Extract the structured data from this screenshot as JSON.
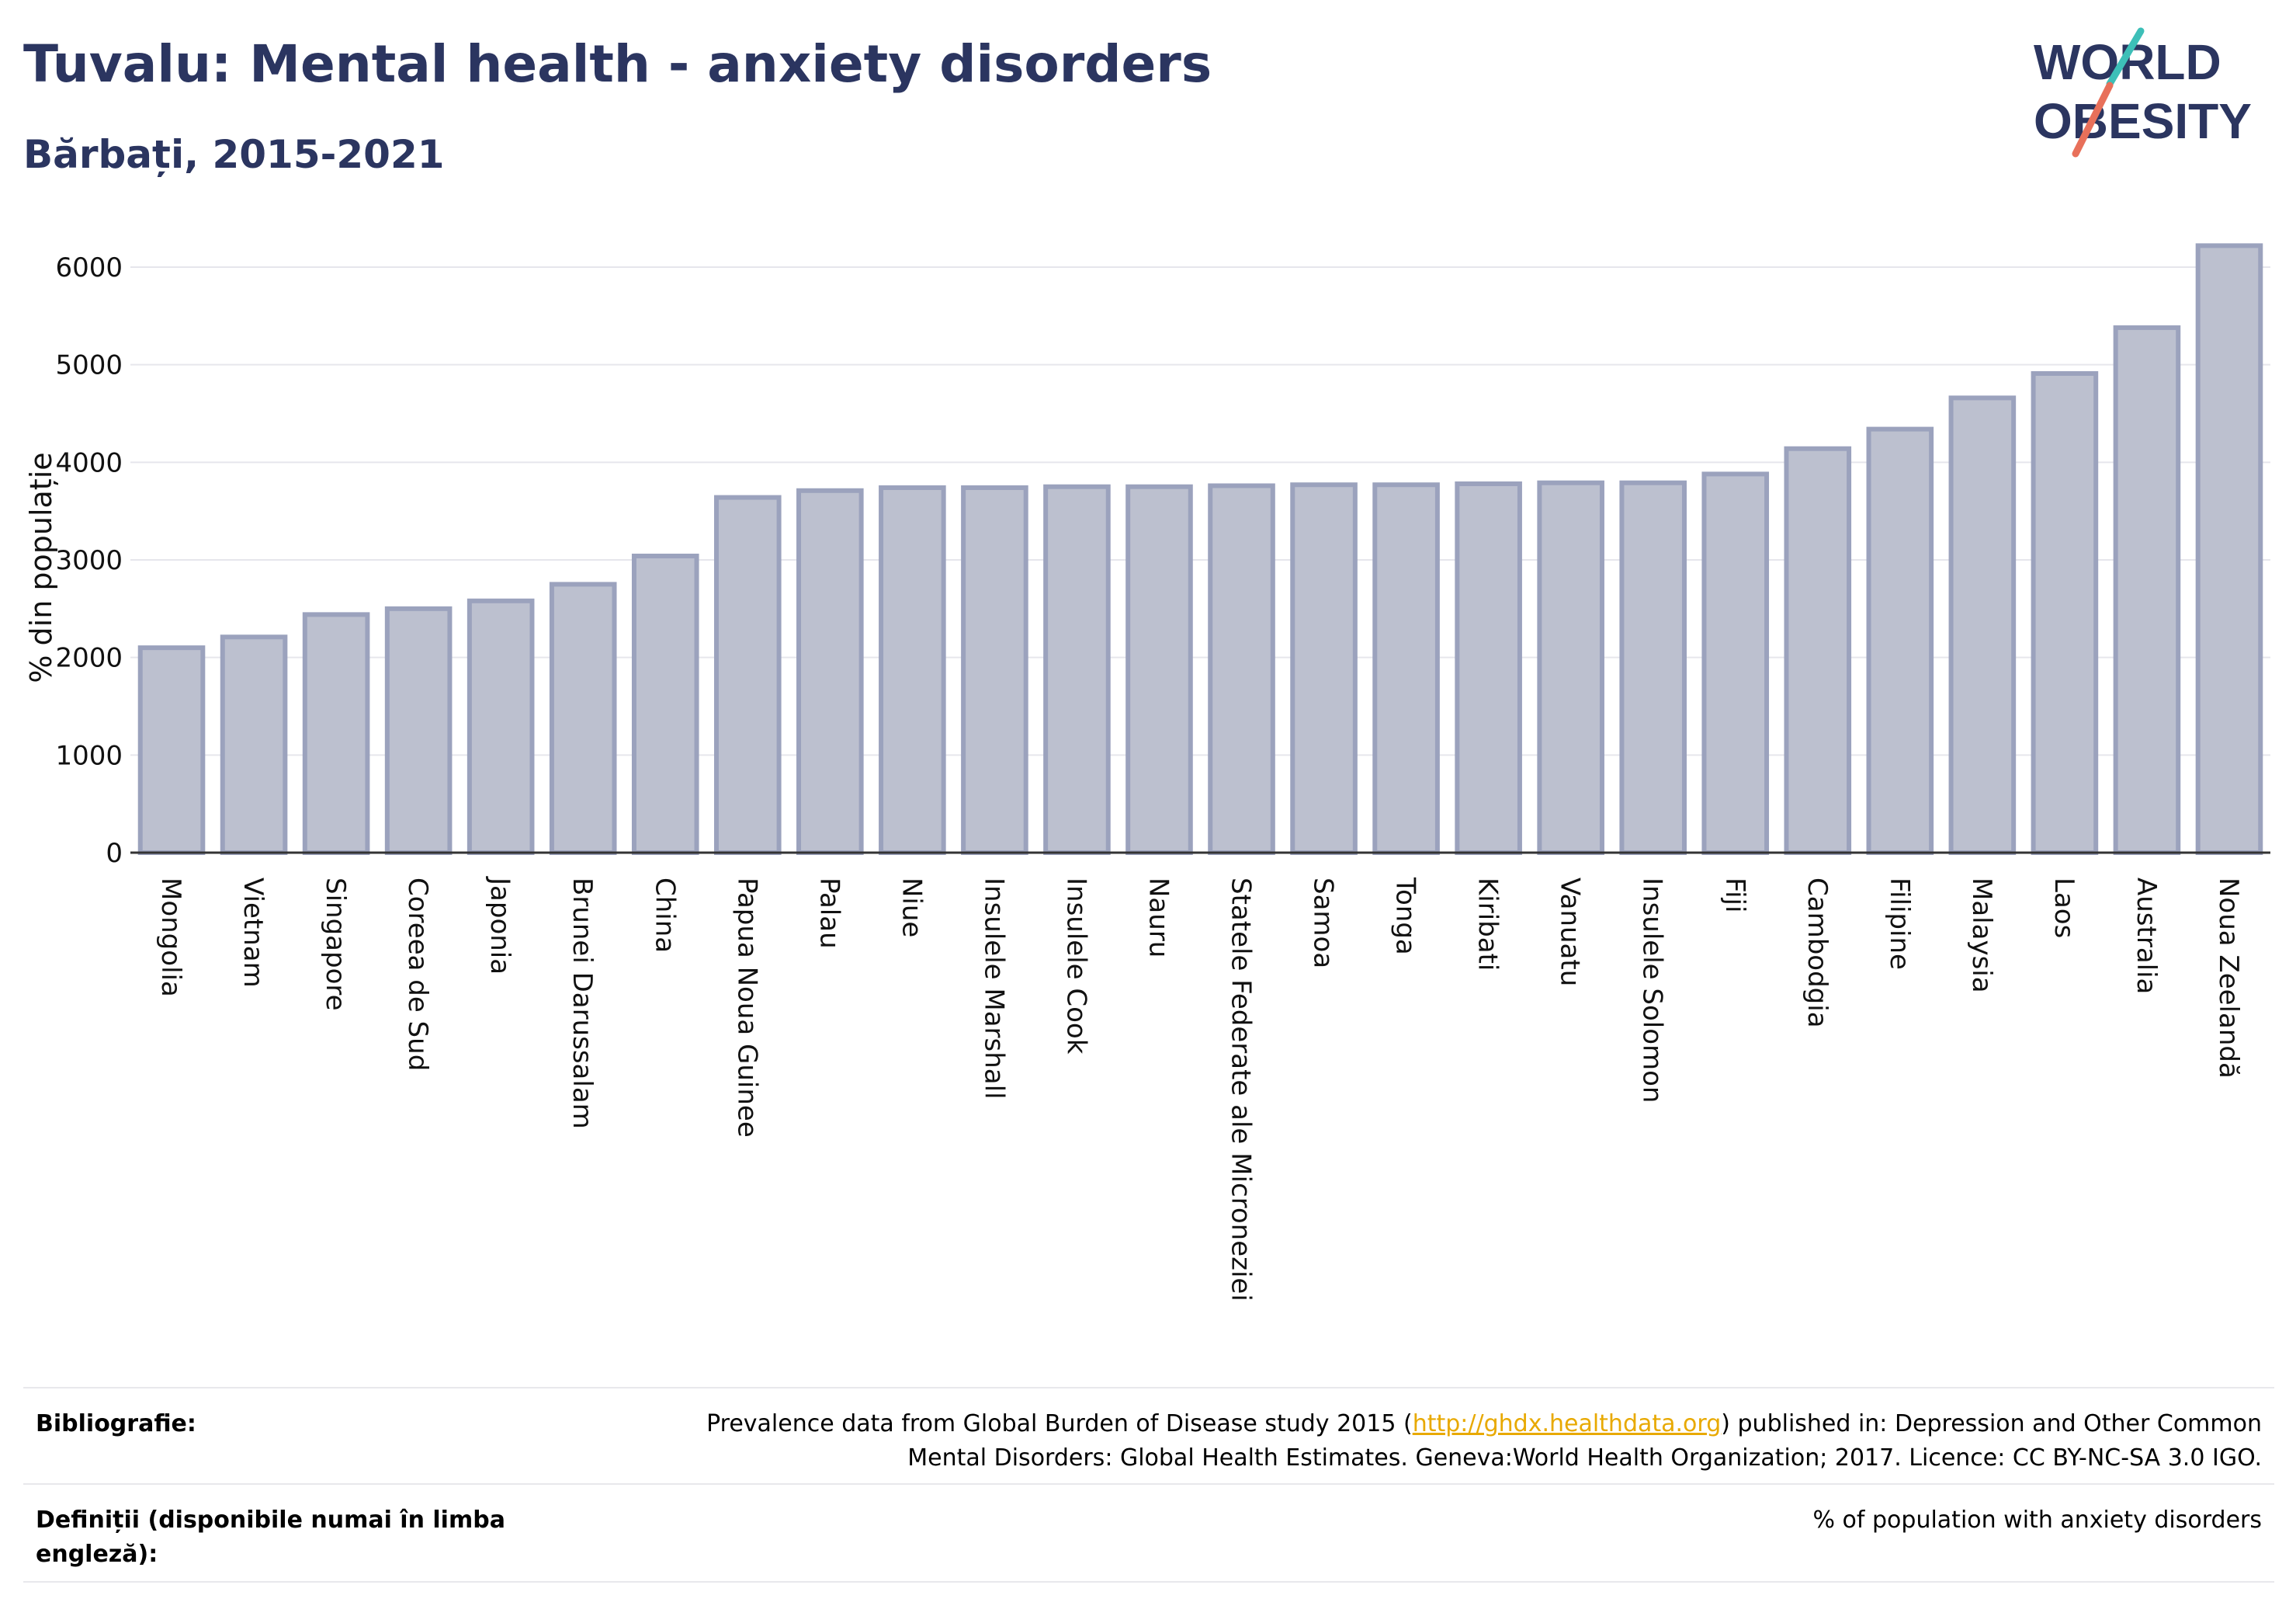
{
  "header": {
    "title": "Tuvalu: Mental health - anxiety disorders",
    "subtitle": "Bărbați, 2015-2021"
  },
  "logo": {
    "line1": "WORLD",
    "line2": "OBESITY",
    "colors": {
      "text": "#2b3560",
      "slash_teal": "#3dbfb8",
      "slash_coral": "#e8705a"
    }
  },
  "chart_data": {
    "type": "bar",
    "categories": [
      "Mongolia",
      "Vietnam",
      "Singapore",
      "Coreea de Sud",
      "Japonia",
      "Brunei Darussalam",
      "China",
      "Papua Noua Guinee",
      "Palau",
      "Niue",
      "Insulele Marshall",
      "Insulele Cook",
      "Nauru",
      "Statele Federate ale Microneziei",
      "Samoa",
      "Tonga",
      "Kiribati",
      "Vanuatu",
      "Insulele Solomon",
      "Fiji",
      "Cambodgia",
      "Filipine",
      "Malaysia",
      "Laos",
      "Australia",
      "Noua Zeelandă"
    ],
    "values": [
      2100,
      2210,
      2440,
      2500,
      2580,
      2750,
      3040,
      3640,
      3710,
      3740,
      3740,
      3750,
      3750,
      3760,
      3770,
      3770,
      3780,
      3790,
      3790,
      3880,
      4140,
      4340,
      4660,
      4910,
      5380,
      6220
    ],
    "ylabel": "% din populație",
    "xlabel": "",
    "ylim": [
      0,
      6500
    ],
    "yticks": [
      0,
      1000,
      2000,
      3000,
      4000,
      5000,
      6000
    ],
    "grid": true,
    "legend": "none",
    "colors": {
      "bar_fill": "#bcc0cf",
      "bar_stroke": "#9ba2bd",
      "axis": "#333333",
      "grid": "#e6e6ec"
    }
  },
  "footer": {
    "bibliography_label": "Bibliografie:",
    "bibliography_prefix": "Prevalence data from Global Burden of Disease study 2015 (",
    "bibliography_link": "http://ghdx.healthdata.org",
    "bibliography_suffix": ") published in: Depression and Other Common",
    "bibliography_line2": "Mental Disorders: Global Health Estimates. Geneva:World Health Organization; 2017. Licence: CC BY-NC-SA 3.0 IGO.",
    "definitions_label_line1": "Definiții (disponibile numai în limba",
    "definitions_label_line2": "engleză):",
    "definitions_value": "% of population with anxiety disorders"
  }
}
